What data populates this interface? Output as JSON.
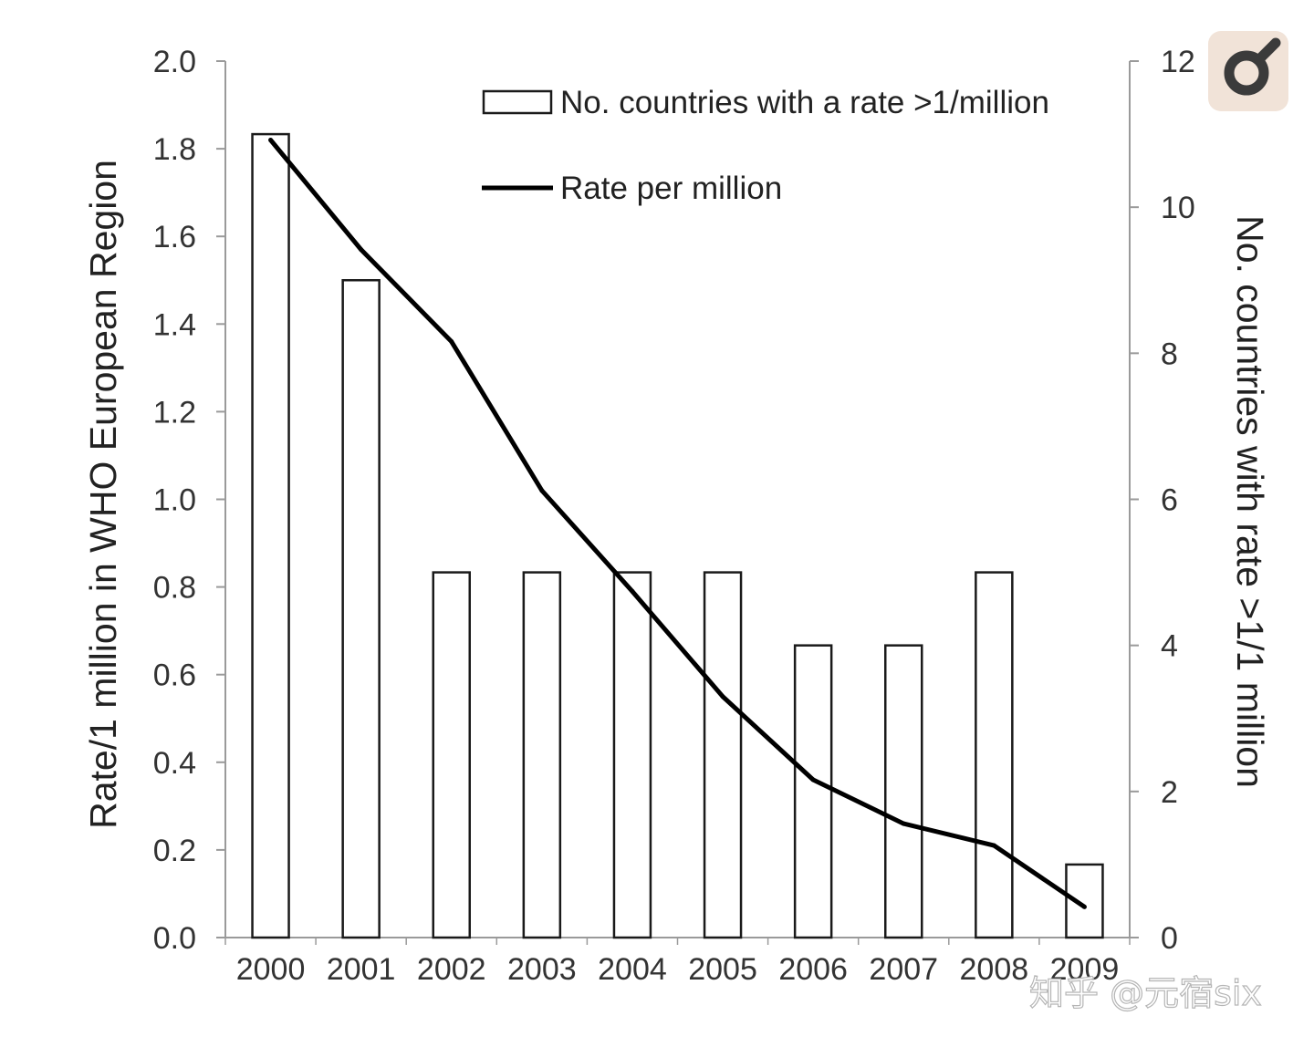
{
  "chart_data": {
    "type": "bar",
    "categories": [
      "2000",
      "2001",
      "2002",
      "2003",
      "2004",
      "2005",
      "2006",
      "2007",
      "2008",
      "2009"
    ],
    "series": [
      {
        "name": "No. countries with a rate >1/million",
        "type": "bar",
        "axis": "right",
        "values": [
          11,
          9,
          5,
          5,
          5,
          5,
          4,
          4,
          5,
          1
        ]
      },
      {
        "name": "Rate per million",
        "type": "line",
        "axis": "left",
        "values": [
          1.82,
          1.57,
          1.36,
          1.02,
          0.79,
          0.55,
          0.36,
          0.26,
          0.21,
          0.07
        ]
      }
    ],
    "ylabel": "Rate/1 million in WHO European Region",
    "y2label": "No. countries with rate >1/1 million",
    "ylim": [
      0,
      2
    ],
    "y2lim": [
      0,
      12
    ],
    "yticks": [
      "0.0",
      "0.2",
      "0.4",
      "0.6",
      "0.8",
      "1.0",
      "1.2",
      "1.4",
      "1.6",
      "1.8",
      "2.0"
    ],
    "y2ticks": [
      "0",
      "2",
      "4",
      "6",
      "8",
      "10",
      "12"
    ],
    "legend_position": "top-right",
    "grid": false
  },
  "watermark": {
    "text": "知乎 @元宿six"
  },
  "colors": {
    "bar_fill": "#ffffff",
    "bar_stroke": "#1a1a1a",
    "line": "#000000",
    "axis": "#9a9a9a",
    "badge_bg": "#f1e3d8",
    "badge_icon": "#3b3b3b"
  }
}
